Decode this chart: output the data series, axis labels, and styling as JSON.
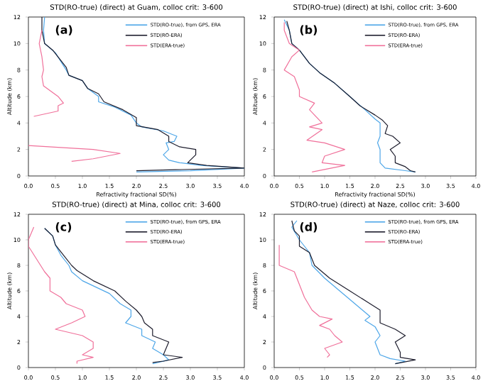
{
  "chart_data": [
    {
      "type": "line",
      "title": "STD(RO-true) (direct) at Guam, colloc crit: 3-600",
      "annotations": [
        "(a)"
      ],
      "xlabel": "Refractivity fractional SD(%)",
      "ylabel": "Altitude (km)",
      "xlim": [
        0,
        4
      ],
      "ylim": [
        0,
        12
      ],
      "xticks": [
        {
          "value": 0,
          "label": "0.0"
        },
        {
          "value": 0.5,
          "label": "0.5"
        },
        {
          "value": 1,
          "label": "1.0"
        },
        {
          "value": 1.5,
          "label": "1.5"
        },
        {
          "value": 2,
          "label": "2.0"
        },
        {
          "value": 2.5,
          "label": "2.5"
        },
        {
          "value": 3,
          "label": "3.0"
        },
        {
          "value": 3.5,
          "label": "3.5"
        },
        {
          "value": 4,
          "label": "4.0"
        }
      ],
      "yticks": [
        0,
        2,
        4,
        6,
        8,
        10,
        12
      ],
      "legend": "top right",
      "series": [
        {
          "name": "STD(RO-true), from GPS, ERA",
          "color": "#4da6e8",
          "x": [
            0.3,
            0.28,
            0.3,
            0.5,
            0.7,
            0.75,
            1.0,
            1.1,
            1.3,
            1.3,
            1.6,
            1.9,
            2.0,
            2.1,
            2.5,
            2.75,
            2.7,
            2.55,
            2.6,
            2.5,
            2.6,
            2.8,
            3.2,
            4.0,
            3.0,
            2.0
          ],
          "values": [
            12,
            11,
            10,
            9.3,
            8,
            7.6,
            7.2,
            6.6,
            6.0,
            5.6,
            5.2,
            4.6,
            4.0,
            3.7,
            3.4,
            3.0,
            2.6,
            2.5,
            2.0,
            1.6,
            1.2,
            1.0,
            0.8,
            0.6,
            0.4,
            0.3
          ]
        },
        {
          "name": "STD(RO-ERA)",
          "color": "#1c1c2c",
          "x": [
            0.25,
            0.25,
            0.3,
            0.45,
            0.7,
            0.75,
            1.0,
            1.1,
            1.3,
            1.4,
            1.75,
            2.0,
            2.0,
            2.4,
            2.6,
            2.6,
            2.8,
            3.1,
            3.1,
            2.95,
            3.3,
            4.0,
            2.0
          ],
          "values": [
            12,
            11,
            10,
            9.5,
            8.2,
            7.6,
            7.2,
            6.6,
            6.2,
            5.6,
            5.0,
            4.4,
            3.8,
            3.5,
            3.0,
            2.6,
            2.2,
            2.0,
            1.6,
            1.0,
            0.8,
            0.6,
            0.4
          ]
        },
        {
          "name": "STD(ERA-true)",
          "color": "#f0709a",
          "x": [
            0.25,
            0.2,
            0.25,
            0.28,
            0.25,
            0.28,
            0.55,
            0.65,
            0.55,
            0.55,
            0.1,
            null,
            0.0,
            1.2,
            1.7,
            1.2,
            0.8
          ],
          "values": [
            11,
            10,
            9,
            8,
            7.5,
            6.8,
            6.0,
            5.5,
            5.3,
            4.9,
            4.5,
            null,
            2.3,
            2.0,
            1.7,
            1.3,
            1.1
          ]
        }
      ]
    },
    {
      "type": "line",
      "title": "STD(RO-true) (direct) at Ishi, colloc crit: 3-600",
      "annotations": [
        "(b)"
      ],
      "xlabel": "Refractivity fractional SD(%)",
      "ylabel": "Altitude (km)",
      "xlim": [
        0,
        4
      ],
      "ylim": [
        0,
        12
      ],
      "xticks": [
        {
          "value": 0,
          "label": "0.0"
        },
        {
          "value": 0.5,
          "label": "0.5"
        },
        {
          "value": 1,
          "label": "1.0"
        },
        {
          "value": 1.5,
          "label": "1.5"
        },
        {
          "value": 2,
          "label": "2.0"
        },
        {
          "value": 2.5,
          "label": "2.5"
        },
        {
          "value": 3,
          "label": "3.0"
        },
        {
          "value": 3.5,
          "label": "3.5"
        },
        {
          "value": 4,
          "label": "4.0"
        }
      ],
      "yticks": [
        0,
        2,
        4,
        6,
        8,
        10,
        12
      ],
      "legend": "top right",
      "series": [
        {
          "name": "STD(RO-true), from GPS, ERA",
          "color": "#4da6e8",
          "x": [
            0.2,
            0.3,
            0.35,
            0.5,
            0.7,
            0.9,
            1.2,
            1.5,
            1.65,
            1.8,
            2.0,
            2.1,
            2.1,
            2.05,
            2.1,
            2.1,
            2.2,
            2.6,
            2.8
          ],
          "values": [
            11.8,
            11,
            10,
            9.5,
            8.5,
            7.8,
            7,
            6,
            5.5,
            5,
            4.3,
            4.0,
            3,
            2.5,
            2.0,
            1.0,
            0.6,
            0.4,
            0.3
          ]
        },
        {
          "name": "STD(RO-ERA)",
          "color": "#1c1c2c",
          "x": [
            0.25,
            0.3,
            0.35,
            0.5,
            0.7,
            0.9,
            1.2,
            1.5,
            1.7,
            2.0,
            2.15,
            2.25,
            2.2,
            2.35,
            2.5,
            2.3,
            2.4,
            2.4,
            2.6,
            2.7,
            2.8
          ],
          "values": [
            11.7,
            11,
            10,
            9.5,
            8.5,
            7.8,
            7,
            6,
            5.3,
            4.6,
            4.2,
            3.8,
            3.2,
            3.0,
            2.5,
            2.0,
            1.5,
            1.0,
            0.7,
            0.4,
            0.3
          ]
        },
        {
          "name": "STD(ERA-true)",
          "color": "#f0709a",
          "x": [
            0.2,
            0.2,
            0.3,
            0.5,
            0.35,
            0.2,
            0.4,
            0.5,
            0.5,
            0.8,
            0.7,
            0.95,
            0.7,
            0.95,
            0.65,
            1.0,
            1.4,
            1.0,
            0.95,
            1.4,
            0.75
          ],
          "values": [
            11.6,
            11,
            10,
            9.5,
            9,
            8,
            7.5,
            6.5,
            6,
            5.5,
            5,
            4,
            3.7,
            3.5,
            2.7,
            2.5,
            2.0,
            1.5,
            1.0,
            0.8,
            0.3
          ]
        }
      ]
    },
    {
      "type": "line",
      "title": "STD(RO-true) (direct) at Mina, colloc crit: 3-600",
      "annotations": [
        "(c)"
      ],
      "ylabel": "Altitude (km)",
      "xlim": [
        0,
        4
      ],
      "ylim": [
        0,
        12
      ],
      "xticks": [
        {
          "value": 0,
          "label": "0.0"
        },
        {
          "value": 0.5,
          "label": "0.5"
        },
        {
          "value": 1,
          "label": "1.0"
        },
        {
          "value": 1.5,
          "label": "1.5"
        },
        {
          "value": 2,
          "label": "2.0"
        },
        {
          "value": 2.5,
          "label": "2.5"
        },
        {
          "value": 3,
          "label": "3.0"
        },
        {
          "value": 3.5,
          "label": "3.5"
        },
        {
          "value": 4,
          "label": "4.0"
        }
      ],
      "yticks": [
        0,
        2,
        4,
        6,
        8,
        10,
        12
      ],
      "legend": "top right",
      "series": [
        {
          "name": "STD(RO-true), from GPS, ERA",
          "color": "#4da6e8",
          "x": [
            0.3,
            0.45,
            0.5,
            0.6,
            0.75,
            0.8,
            1.0,
            1.5,
            1.7,
            1.9,
            1.9,
            1.8,
            2.1,
            2.1,
            2.35,
            2.3,
            2.5,
            2.6,
            2.3
          ],
          "values": [
            10.9,
            10.3,
            9.6,
            8.8,
            8,
            7.5,
            6.8,
            5.8,
            5,
            4.5,
            4.0,
            3.5,
            3.0,
            2.5,
            2.0,
            1.5,
            1.0,
            0.6,
            0.3
          ]
        },
        {
          "name": "STD(RO-ERA)",
          "color": "#1c1c2c",
          "x": [
            0.3,
            0.45,
            0.5,
            0.65,
            0.8,
            0.9,
            1.2,
            1.6,
            1.8,
            2.0,
            2.1,
            2.15,
            2.3,
            2.3,
            2.6,
            2.55,
            2.5,
            2.85,
            2.5,
            2.3
          ],
          "values": [
            10.9,
            10.3,
            9.6,
            8.8,
            8,
            7.6,
            6.8,
            6,
            5.2,
            4.5,
            4.0,
            3.5,
            3.0,
            2.5,
            2.0,
            1.5,
            1.0,
            0.8,
            0.5,
            0.4
          ]
        },
        {
          "name": "STD(ERA-true)",
          "color": "#f0709a",
          "x": [
            0.1,
            0.0,
            0.0,
            0.15,
            0.3,
            0.4,
            0.4,
            0.6,
            0.7,
            1.0,
            1.05,
            0.8,
            0.5,
            1.0,
            1.2,
            1.2,
            1.0,
            1.2,
            0.9,
            0.9
          ],
          "values": [
            11,
            10,
            9.5,
            8.5,
            7.5,
            7,
            6,
            5.5,
            5,
            4.5,
            4.0,
            3.5,
            3.0,
            2.5,
            2.0,
            1.5,
            1.0,
            0.8,
            0.5,
            0.3
          ]
        }
      ]
    },
    {
      "type": "line",
      "title": "STD(RO-true) (direct) at Naze, colloc crit: 3-600",
      "annotations": [
        "(d)"
      ],
      "ylabel": "Altitude (km)",
      "xlim": [
        0,
        4
      ],
      "ylim": [
        0,
        12
      ],
      "xticks": [
        {
          "value": 0,
          "label": "0.0"
        },
        {
          "value": 0.5,
          "label": "0.5"
        },
        {
          "value": 1,
          "label": "1.0"
        },
        {
          "value": 1.5,
          "label": "1.5"
        },
        {
          "value": 2,
          "label": "2.0"
        },
        {
          "value": 2.5,
          "label": "2.5"
        },
        {
          "value": 3,
          "label": "3.0"
        },
        {
          "value": 3.5,
          "label": "3.5"
        },
        {
          "value": 4,
          "label": "4.0"
        }
      ],
      "yticks": [
        0,
        2,
        4,
        6,
        8,
        10,
        12
      ],
      "legend": "top right",
      "series": [
        {
          "name": "STD(RO-true), from GPS, ERA",
          "color": "#4da6e8",
          "x": [
            0.45,
            0.35,
            0.5,
            0.7,
            0.75,
            1.0,
            1.3,
            1.6,
            1.75,
            1.9,
            1.8,
            2.0,
            2.1,
            2.0,
            2.1,
            2.3,
            2.6,
            2.4
          ],
          "values": [
            11.5,
            11,
            10,
            9,
            8,
            7,
            6,
            5,
            4.5,
            4.0,
            3.7,
            3.2,
            2.5,
            2.0,
            1.0,
            0.7,
            0.5,
            0.3
          ]
        },
        {
          "name": "STD(RO-ERA)",
          "color": "#1c1c2c",
          "x": [
            0.35,
            0.4,
            0.5,
            0.5,
            0.7,
            0.8,
            1.1,
            1.5,
            1.9,
            2.1,
            2.1,
            2.4,
            2.6,
            2.4,
            2.5,
            2.5,
            2.8,
            2.4
          ],
          "values": [
            11.5,
            10.7,
            10.3,
            9.5,
            9,
            8,
            7,
            6,
            5,
            4.5,
            3.5,
            3,
            2.5,
            2.0,
            1.2,
            0.8,
            0.6,
            0.3
          ]
        },
        {
          "name": "STD(ERA-true)",
          "color": "#f0709a",
          "x": [
            0.1,
            0.1,
            0.4,
            0.5,
            0.6,
            0.75,
            0.9,
            1.15,
            0.9,
            1.1,
            1.2,
            1.35,
            1.0,
            1.1,
            1.05
          ],
          "values": [
            9.6,
            8,
            7.5,
            6.5,
            5.5,
            4.5,
            4,
            3.8,
            3.3,
            3.0,
            2.5,
            2.0,
            1.5,
            1.0,
            0.8
          ]
        }
      ]
    }
  ]
}
